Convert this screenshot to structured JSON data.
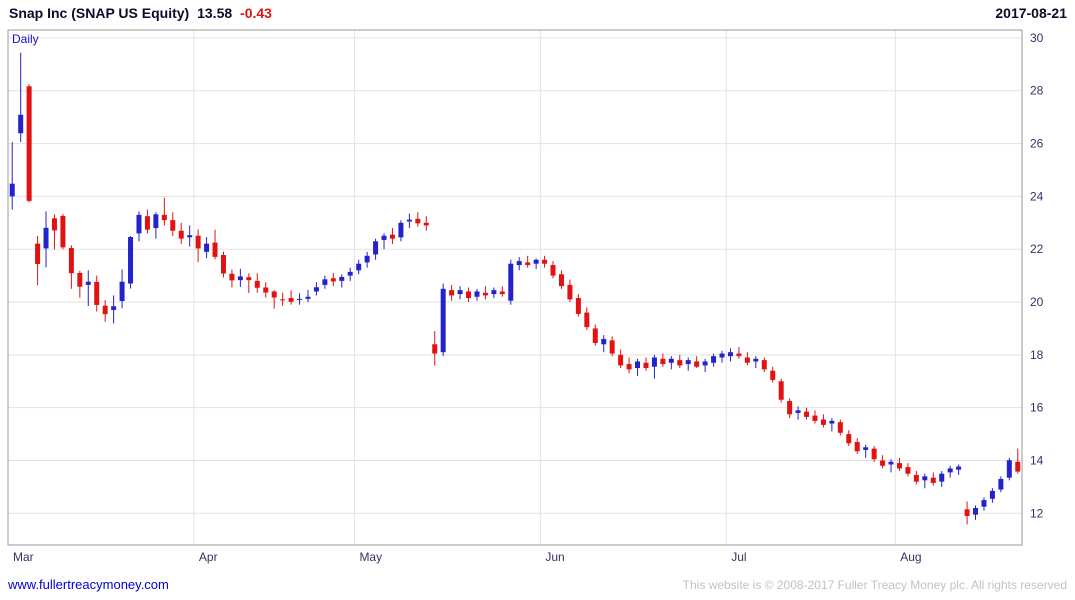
{
  "header": {
    "title": "Snap Inc (SNAP US Equity)",
    "price": "13.58",
    "change": "-0.43",
    "date": "2017-08-21"
  },
  "chart": {
    "interval_label": "Daily"
  },
  "footer": {
    "site_link": "www.fullertreacymoney.com",
    "copyright": "This website is © 2008-2017 Fuller Treacy Money plc. All rights reserved"
  },
  "chart_data": {
    "type": "candlestick",
    "title": "Snap Inc (SNAP US Equity)",
    "interval": "Daily",
    "last_price": 13.58,
    "change": -0.43,
    "date": "2017-08-21",
    "ohlc_format": [
      "open",
      "high",
      "low",
      "close"
    ],
    "up_color": "#2323cd",
    "down_color": "#e01212",
    "grid_color": "#e2e2e2",
    "border_color": "#9a9a9a",
    "axis_text_color": "#333366",
    "legend_position": "none",
    "grid": true,
    "ylim": [
      10.8,
      30.3
    ],
    "yticks": [
      12,
      14,
      16,
      18,
      20,
      22,
      24,
      26,
      28,
      30
    ],
    "month_ticks": [
      {
        "label": "Mar",
        "index": 0
      },
      {
        "label": "Apr",
        "index": 22
      },
      {
        "label": "May",
        "index": 41
      },
      {
        "label": "Jun",
        "index": 63
      },
      {
        "label": "Jul",
        "index": 85
      },
      {
        "label": "Aug",
        "index": 105
      }
    ],
    "candles": [
      [
        24.0,
        26.05,
        23.5,
        24.48
      ],
      [
        26.39,
        29.44,
        26.06,
        27.09
      ],
      [
        28.17,
        28.25,
        23.77,
        23.83
      ],
      [
        22.21,
        22.5,
        20.64,
        21.44
      ],
      [
        22.03,
        23.43,
        21.31,
        22.81
      ],
      [
        23.17,
        23.32,
        21.99,
        22.71
      ],
      [
        23.26,
        23.33,
        22.0,
        22.07
      ],
      [
        22.05,
        22.15,
        20.5,
        21.09
      ],
      [
        21.1,
        21.18,
        20.16,
        20.58
      ],
      [
        20.65,
        21.2,
        19.85,
        20.77
      ],
      [
        20.76,
        21.0,
        19.64,
        19.89
      ],
      [
        19.86,
        20.07,
        19.25,
        19.54
      ],
      [
        19.7,
        20.25,
        19.19,
        19.84
      ],
      [
        20.04,
        21.24,
        19.76,
        20.77
      ],
      [
        20.7,
        22.5,
        20.51,
        22.46
      ],
      [
        22.6,
        23.43,
        22.3,
        23.3
      ],
      [
        23.25,
        23.5,
        22.6,
        22.74
      ],
      [
        22.8,
        23.4,
        22.4,
        23.32
      ],
      [
        23.3,
        23.95,
        22.9,
        23.1
      ],
      [
        23.1,
        23.4,
        22.5,
        22.7
      ],
      [
        22.7,
        23.0,
        22.2,
        22.4
      ],
      [
        22.45,
        22.9,
        22.1,
        22.53
      ],
      [
        22.51,
        22.75,
        21.51,
        22.03
      ],
      [
        21.9,
        22.46,
        21.66,
        22.21
      ],
      [
        22.25,
        22.74,
        21.62,
        21.71
      ],
      [
        21.78,
        21.91,
        20.93,
        21.08
      ],
      [
        21.07,
        21.23,
        20.55,
        20.82
      ],
      [
        20.83,
        21.26,
        20.57,
        20.97
      ],
      [
        20.94,
        21.09,
        20.34,
        20.83
      ],
      [
        20.8,
        21.09,
        20.35,
        20.54
      ],
      [
        20.55,
        20.75,
        20.17,
        20.36
      ],
      [
        20.4,
        20.45,
        19.75,
        20.17
      ],
      [
        20.1,
        20.35,
        19.85,
        20.08
      ],
      [
        20.15,
        20.44,
        19.9,
        20.01
      ],
      [
        20.1,
        20.33,
        19.9,
        20.12
      ],
      [
        20.12,
        20.46,
        20.0,
        20.2
      ],
      [
        20.4,
        20.75,
        20.25,
        20.56
      ],
      [
        20.65,
        21.0,
        20.5,
        20.86
      ],
      [
        20.9,
        21.1,
        20.6,
        20.78
      ],
      [
        20.8,
        21.05,
        20.55,
        20.95
      ],
      [
        21.0,
        21.3,
        20.8,
        21.14
      ],
      [
        21.2,
        21.6,
        21.05,
        21.45
      ],
      [
        21.5,
        21.9,
        21.3,
        21.75
      ],
      [
        21.8,
        22.4,
        21.6,
        22.3
      ],
      [
        22.35,
        22.6,
        22.0,
        22.51
      ],
      [
        22.55,
        22.8,
        22.2,
        22.4
      ],
      [
        22.45,
        23.1,
        22.3,
        23.0
      ],
      [
        23.05,
        23.35,
        22.8,
        23.12
      ],
      [
        23.15,
        23.4,
        22.85,
        22.98
      ],
      [
        23.0,
        23.25,
        22.7,
        22.9
      ],
      [
        18.4,
        18.9,
        17.59,
        18.05
      ],
      [
        18.1,
        20.7,
        17.95,
        20.5
      ],
      [
        20.45,
        20.65,
        20.05,
        20.25
      ],
      [
        20.3,
        20.6,
        20.1,
        20.45
      ],
      [
        20.4,
        20.55,
        20.0,
        20.15
      ],
      [
        20.2,
        20.5,
        20.05,
        20.4
      ],
      [
        20.35,
        20.6,
        20.1,
        20.25
      ],
      [
        20.3,
        20.55,
        20.15,
        20.45
      ],
      [
        20.4,
        20.6,
        20.2,
        20.3
      ],
      [
        20.05,
        21.6,
        19.9,
        21.45
      ],
      [
        21.4,
        21.7,
        21.2,
        21.55
      ],
      [
        21.5,
        21.75,
        21.3,
        21.4
      ],
      [
        21.45,
        21.65,
        21.25,
        21.6
      ],
      [
        21.6,
        21.75,
        21.3,
        21.45
      ],
      [
        21.4,
        21.55,
        20.9,
        21.0
      ],
      [
        21.05,
        21.2,
        20.5,
        20.6
      ],
      [
        20.65,
        20.85,
        20.0,
        20.1
      ],
      [
        20.15,
        20.3,
        19.45,
        19.55
      ],
      [
        19.6,
        19.8,
        18.95,
        19.05
      ],
      [
        19.0,
        19.15,
        18.35,
        18.45
      ],
      [
        18.4,
        18.75,
        18.1,
        18.6
      ],
      [
        18.55,
        18.7,
        17.95,
        18.05
      ],
      [
        18.0,
        18.2,
        17.5,
        17.6
      ],
      [
        17.65,
        17.9,
        17.3,
        17.45
      ],
      [
        17.5,
        17.85,
        17.2,
        17.75
      ],
      [
        17.7,
        17.9,
        17.4,
        17.5
      ],
      [
        17.55,
        18.0,
        17.1,
        17.9
      ],
      [
        17.85,
        18.05,
        17.55,
        17.65
      ],
      [
        17.7,
        17.95,
        17.45,
        17.85
      ],
      [
        17.8,
        18.0,
        17.5,
        17.6
      ],
      [
        17.65,
        17.9,
        17.4,
        17.8
      ],
      [
        17.75,
        17.95,
        17.5,
        17.55
      ],
      [
        17.6,
        17.85,
        17.35,
        17.75
      ],
      [
        17.7,
        18.05,
        17.55,
        17.95
      ],
      [
        17.9,
        18.15,
        17.7,
        18.05
      ],
      [
        17.95,
        18.25,
        17.75,
        18.1
      ],
      [
        18.05,
        18.3,
        17.85,
        17.95
      ],
      [
        17.9,
        18.1,
        17.6,
        17.7
      ],
      [
        17.75,
        17.95,
        17.5,
        17.85
      ],
      [
        17.8,
        17.9,
        17.35,
        17.45
      ],
      [
        17.4,
        17.55,
        16.95,
        17.05
      ],
      [
        17.0,
        17.1,
        16.2,
        16.3
      ],
      [
        16.25,
        16.35,
        15.6,
        15.75
      ],
      [
        15.8,
        16.05,
        15.55,
        15.9
      ],
      [
        15.85,
        16.0,
        15.55,
        15.65
      ],
      [
        15.7,
        15.9,
        15.4,
        15.5
      ],
      [
        15.55,
        15.75,
        15.25,
        15.35
      ],
      [
        15.4,
        15.6,
        15.1,
        15.5
      ],
      [
        15.45,
        15.55,
        14.95,
        15.05
      ],
      [
        15.0,
        15.15,
        14.55,
        14.65
      ],
      [
        14.7,
        14.85,
        14.25,
        14.35
      ],
      [
        14.4,
        14.6,
        14.1,
        14.5
      ],
      [
        14.45,
        14.55,
        13.95,
        14.05
      ],
      [
        14.0,
        14.2,
        13.7,
        13.8
      ],
      [
        13.85,
        14.05,
        13.55,
        13.95
      ],
      [
        13.9,
        14.1,
        13.6,
        13.7
      ],
      [
        13.75,
        13.9,
        13.4,
        13.5
      ],
      [
        13.45,
        13.6,
        13.1,
        13.2
      ],
      [
        13.25,
        13.5,
        12.95,
        13.4
      ],
      [
        13.35,
        13.55,
        13.05,
        13.15
      ],
      [
        13.2,
        13.6,
        13.0,
        13.5
      ],
      [
        13.55,
        13.8,
        13.35,
        13.7
      ],
      [
        13.65,
        13.85,
        13.45,
        13.77
      ],
      [
        12.15,
        12.45,
        11.58,
        11.9
      ],
      [
        11.95,
        12.3,
        11.75,
        12.2
      ],
      [
        12.25,
        12.6,
        12.1,
        12.5
      ],
      [
        12.55,
        12.95,
        12.4,
        12.85
      ],
      [
        12.9,
        13.4,
        12.8,
        13.3
      ],
      [
        13.35,
        14.1,
        13.25,
        14.01
      ],
      [
        13.95,
        14.45,
        13.5,
        13.58
      ]
    ]
  }
}
